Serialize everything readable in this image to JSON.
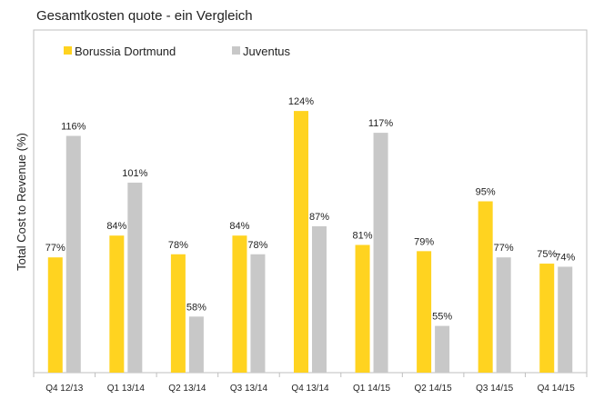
{
  "chart_data": {
    "type": "bar",
    "title": "Gesamtkosten quote - ein Vergleich",
    "xlabel": "",
    "ylabel": "Total Cost to Revenue (%)",
    "ylim": [
      40,
      150
    ],
    "grid": false,
    "legend": "top-left",
    "categories": [
      "Q4 12/13",
      "Q1 13/14",
      "Q2 13/14",
      "Q3 13/14",
      "Q4 13/14",
      "Q1 14/15",
      "Q2 14/15",
      "Q3 14/15",
      "Q4 14/15"
    ],
    "series": [
      {
        "name": "Borussia Dortmund",
        "color": "#FFD320",
        "values": [
          77,
          84,
          78,
          84,
          124,
          81,
          79,
          95,
          75
        ],
        "labels": [
          "77%",
          "84%",
          "78%",
          "84%",
          "124%",
          "81%",
          "79%",
          "95%",
          "75%"
        ]
      },
      {
        "name": "Juventus",
        "color": "#C8C8C8",
        "values": [
          116,
          101,
          58,
          78,
          87,
          117,
          55,
          77,
          74
        ],
        "labels": [
          "116%",
          "101%",
          "58%",
          "78%",
          "87%",
          "117%",
          "55%",
          "77%",
          "74%"
        ]
      }
    ]
  }
}
